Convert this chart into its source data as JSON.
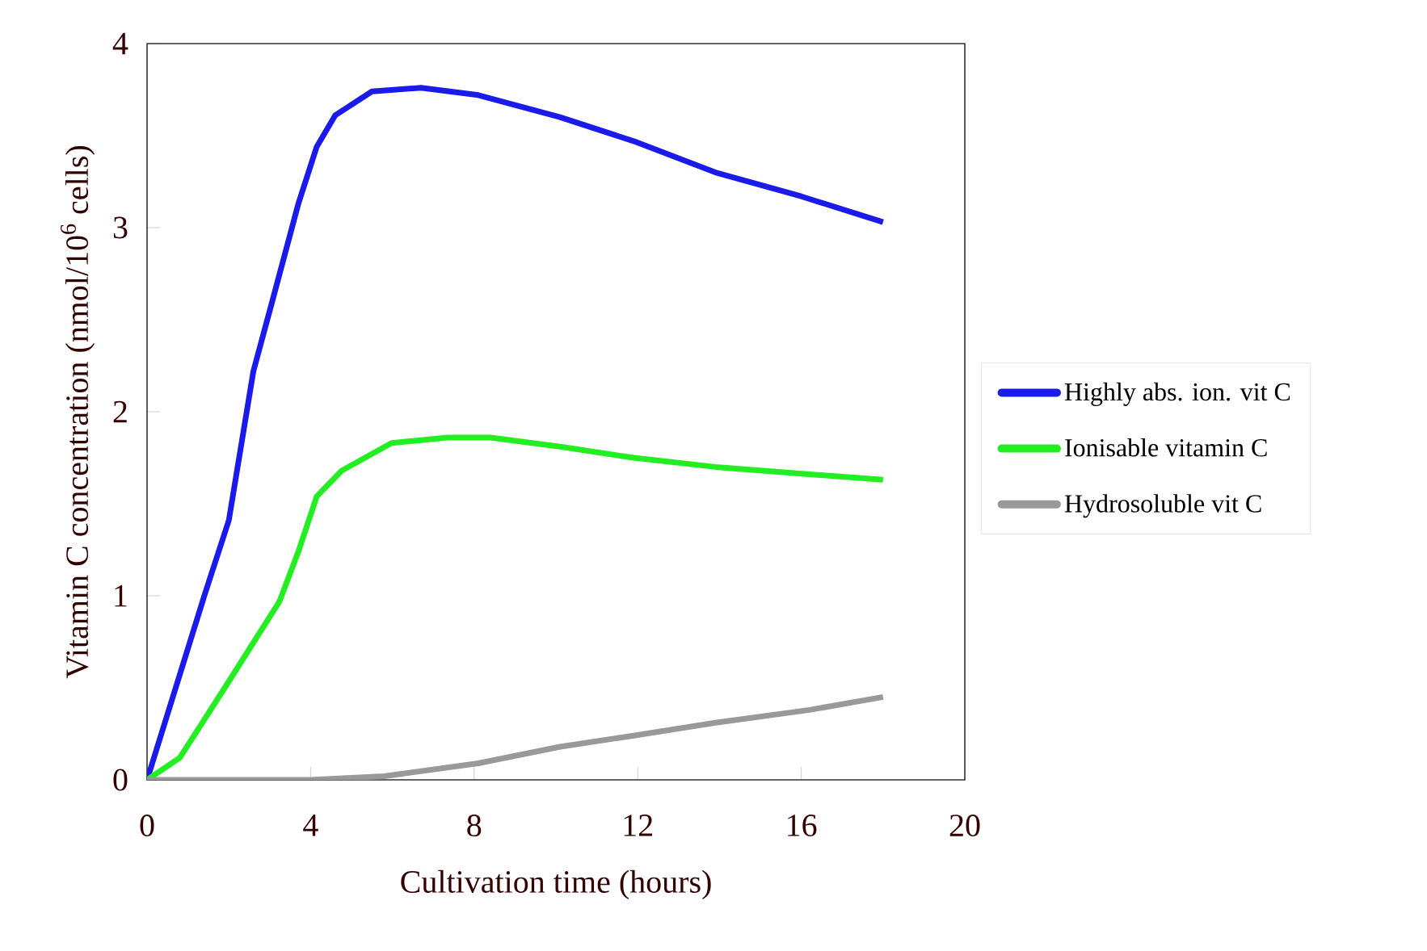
{
  "chart_data": {
    "type": "line",
    "xlabel": "Cultivation time (hours)",
    "ylabel": "Vitamin C concentration (nmol/10$^{6}$ cells)",
    "xlim": [
      0,
      20
    ],
    "ylim": [
      0,
      4
    ],
    "xticks": [
      0,
      4,
      8,
      12,
      16,
      20
    ],
    "yticks": [
      0,
      1,
      2,
      3,
      4
    ],
    "legend": "right",
    "grid": false,
    "marker": "none",
    "line_style": "solid",
    "series": [
      {
        "name": "Highly  abs. ion. vit C",
        "color": "#1a1aeb",
        "x": [
          0,
          1.4,
          2.0,
          2.6,
          3.05,
          3.7,
          4.15,
          4.6,
          5.5,
          6.7,
          8.1,
          10.1,
          11.9,
          13.9,
          16,
          18
        ],
        "values": [
          0,
          1.0,
          1.41,
          2.22,
          2.59,
          3.13,
          3.44,
          3.61,
          3.74,
          3.76,
          3.72,
          3.6,
          3.47,
          3.3,
          3.17,
          3.03
        ]
      },
      {
        "name": "Ionisable vitamin C",
        "color": "#22ee22",
        "x": [
          0,
          0.8,
          1.9,
          3.24,
          3.7,
          4.15,
          4.76,
          5.98,
          7.35,
          8.4,
          10.1,
          11.9,
          13.9,
          16.2,
          18
        ],
        "values": [
          0,
          0.12,
          0.5,
          0.97,
          1.24,
          1.54,
          1.68,
          1.83,
          1.86,
          1.86,
          1.81,
          1.75,
          1.7,
          1.66,
          1.63
        ]
      },
      {
        "name": "Hydrosoluble vit C",
        "color": "#999999",
        "x": [
          0,
          2,
          4,
          5.8,
          8.1,
          10.1,
          11.9,
          13.9,
          16.2,
          18
        ],
        "values": [
          0,
          0,
          0,
          0.02,
          0.09,
          0.18,
          0.24,
          0.31,
          0.38,
          0.45
        ]
      }
    ]
  }
}
